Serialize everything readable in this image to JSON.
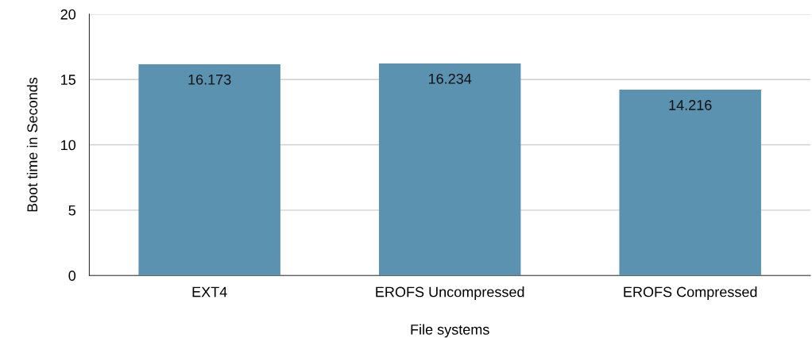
{
  "chart_data": {
    "type": "bar",
    "xlabel": "File systems",
    "ylabel": "Boot time in Seconds",
    "categories": [
      "EXT4",
      "EROFS Uncompressed",
      "EROFS Compressed"
    ],
    "values": [
      16.173,
      16.234,
      14.216
    ],
    "color": "#5a92b0",
    "ylim": [
      0,
      20
    ],
    "yticks": [
      0,
      5,
      10,
      15,
      20
    ],
    "grid": "y",
    "data_labels": true
  }
}
